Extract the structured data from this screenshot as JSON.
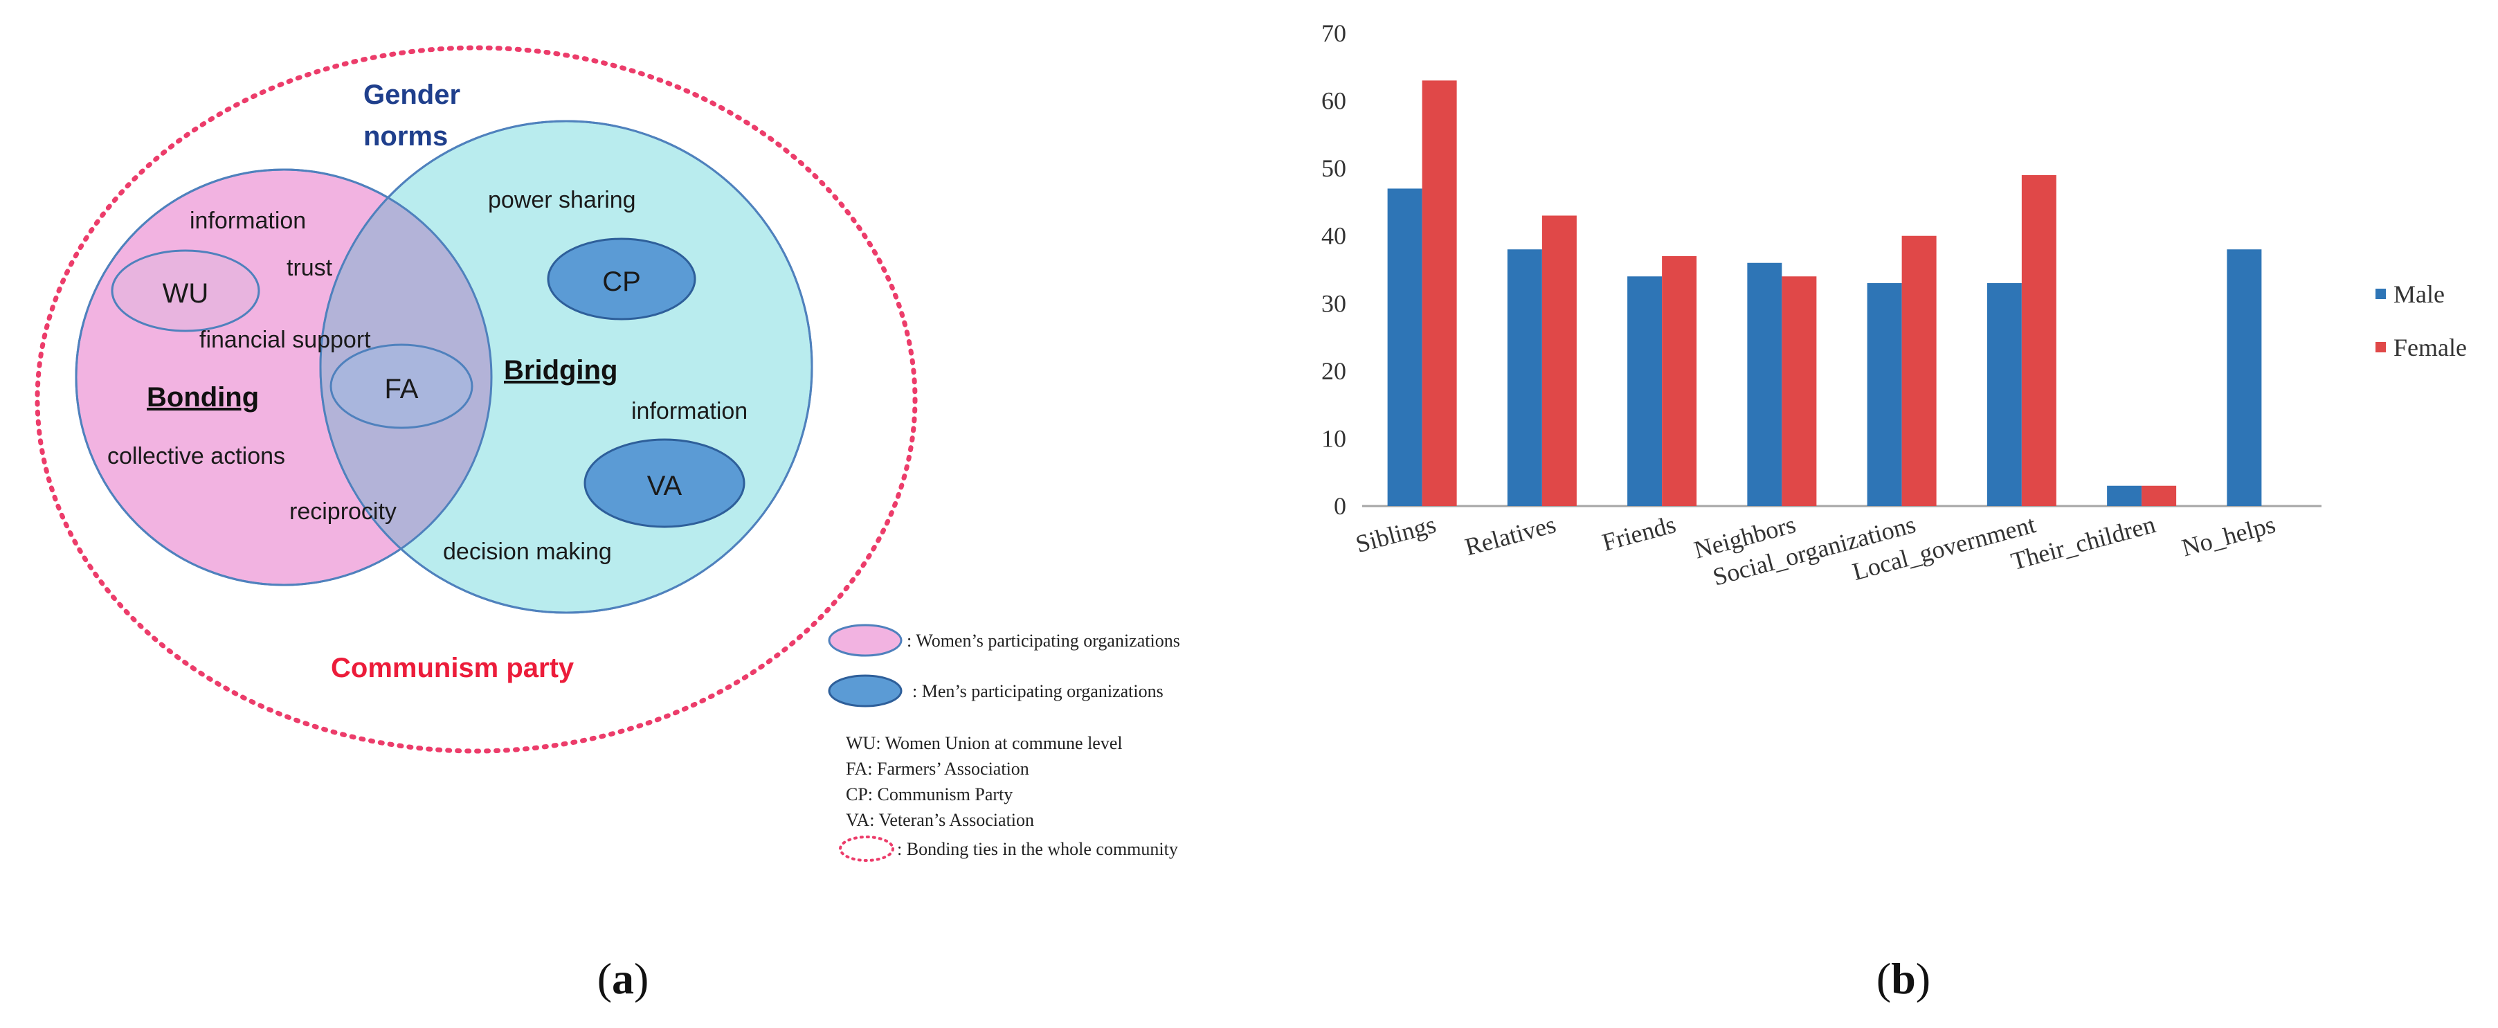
{
  "panel_a": {
    "gender_norms_line1": "Gender",
    "gender_norms_line2": "norms",
    "communism_party": "Communism party",
    "bonding": "Bonding",
    "bridging": "Bridging",
    "bonding_words": [
      "information",
      "trust",
      "financial support",
      "collective actions",
      "reciprocity"
    ],
    "bridging_words": [
      "power sharing",
      "information",
      "decision making"
    ],
    "orgs": {
      "wu": "WU",
      "fa": "FA",
      "cp": "CP",
      "va": "VA"
    },
    "legend": {
      "women": ": Women’s participating organizations",
      "men": ": Men’s participating organizations",
      "abbrev": [
        "WU: Women Union at commune level",
        "FA: Farmers’ Association",
        "CP: Communism Party",
        "VA: Veteran’s Association"
      ],
      "bonding_ties": ": Bonding ties in the whole community"
    },
    "colors": {
      "women": "#f2b3e1",
      "men_circle": "#b9ecee",
      "org_fill": "#5b9bd5",
      "overlap": "#b3b3d8",
      "dotted": "#ec3c6a",
      "gender_norms_text": "#1f3f8c",
      "communism_text": "#ec1c3a"
    }
  },
  "chart_data": {
    "type": "bar",
    "categories": [
      "Siblings",
      "Relatives",
      "Friends",
      "Neighbors",
      "Social_organizations",
      "Local_government",
      "Their_children",
      "No_helps"
    ],
    "series": [
      {
        "name": "Male",
        "color": "#2e75b6",
        "values": [
          47,
          38,
          34,
          36,
          33,
          33,
          3,
          38
        ]
      },
      {
        "name": "Female",
        "color": "#e04848",
        "values": [
          63,
          43,
          37,
          34,
          40,
          49,
          3,
          0
        ]
      }
    ],
    "ylim": [
      0,
      70
    ],
    "yticks": [
      0,
      10,
      20,
      30,
      40,
      50,
      60,
      70
    ],
    "title": "",
    "xlabel": "",
    "ylabel": ""
  },
  "captions": {
    "a_open": "(",
    "a_letter": "a",
    "a_close": ")",
    "b_open": "(",
    "b_letter": "b",
    "b_close": ")"
  }
}
